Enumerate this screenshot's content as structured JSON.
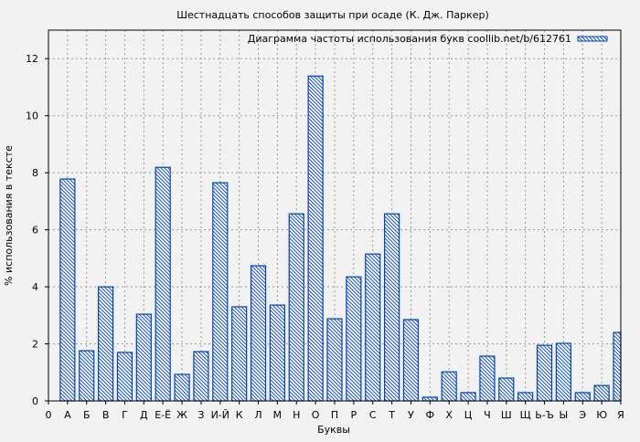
{
  "chart_data": {
    "type": "bar",
    "title": "Шестнадцать способов защиты при осаде (К. Дж. Паркер)",
    "xlabel": "Буквы",
    "ylabel": "% использования в тексте",
    "legend": {
      "label": "Диаграмма частоты использования букв coollib.net/b/612761",
      "placement": "top-right"
    },
    "x_tick_labels": [
      "0",
      "А",
      "Б",
      "В",
      "Г",
      "Д",
      "Е-Ё",
      "Ж",
      "З",
      "И-Й",
      "К",
      "Л",
      "М",
      "Н",
      "О",
      "П",
      "Р",
      "С",
      "Т",
      "У",
      "Ф",
      "Х",
      "Ц",
      "Ч",
      "Ш",
      "Щ",
      "Ь-Ъ",
      "Ы",
      "Э",
      "Ю",
      "Я"
    ],
    "categories": [
      "А",
      "Б",
      "В",
      "Г",
      "Д",
      "Е-Ё",
      "Ж",
      "З",
      "И-Й",
      "К",
      "Л",
      "М",
      "Н",
      "О",
      "П",
      "Р",
      "С",
      "Т",
      "У",
      "Ф",
      "Х",
      "Ц",
      "Ч",
      "Ш",
      "Щ",
      "Ь-Ъ",
      "Ы",
      "Э",
      "Ю",
      "Я"
    ],
    "values": [
      7.78,
      1.76,
      4.0,
      1.7,
      3.04,
      8.19,
      0.93,
      1.73,
      7.65,
      3.3,
      4.74,
      3.36,
      6.56,
      11.39,
      2.88,
      4.35,
      5.15,
      6.56,
      2.85,
      0.13,
      1.02,
      0.29,
      1.57,
      0.8,
      0.29,
      1.95,
      2.02,
      0.29,
      0.54,
      2.4
    ],
    "xlim": [
      0,
      30
    ],
    "ylim": [
      0,
      13
    ],
    "y_ticks": [
      0,
      2,
      4,
      6,
      8,
      10,
      12
    ],
    "grid": true,
    "bar_color": "#0044bb",
    "bar_fill": "#f2f2f2",
    "hatch": "diagonal"
  }
}
